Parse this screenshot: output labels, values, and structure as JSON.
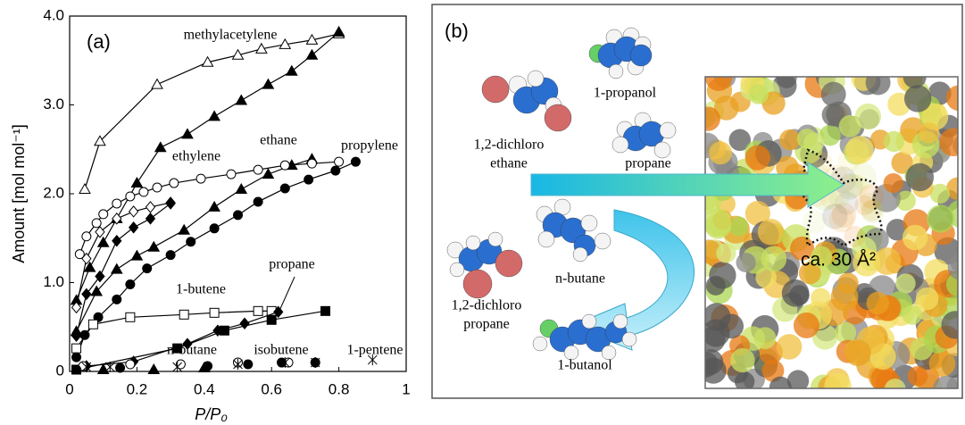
{
  "chart_data": {
    "type": "line",
    "panel_label": "(a)",
    "xlabel": "P/P₀",
    "ylabel": "Amount [mol mol⁻¹]",
    "xlim": [
      0,
      1
    ],
    "ylim": [
      0,
      4
    ],
    "xticks": [
      0,
      0.2,
      0.4,
      0.6,
      0.8,
      1
    ],
    "yticks": [
      0,
      {
        "value": 1,
        "label": "1.0"
      },
      {
        "value": 2,
        "label": "2.0"
      },
      {
        "value": 3,
        "label": "3.0"
      },
      {
        "value": 4,
        "label": "4.0"
      }
    ],
    "annotations": [
      "methylacetylene",
      "ethylene",
      "ethane",
      "propylene",
      "1-butene",
      "propane",
      "n-butane",
      "isobutene",
      "1-pentene"
    ],
    "series": [
      {
        "marker": "triangle",
        "filled": false,
        "line": true,
        "color": "#000000",
        "x": [
          0.045,
          0.09,
          0.26,
          0.41,
          0.5,
          0.57,
          0.64,
          0.72,
          0.8
        ],
        "values": [
          2.05,
          2.59,
          3.23,
          3.48,
          3.56,
          3.63,
          3.68,
          3.73,
          3.8
        ]
      },
      {
        "marker": "triangle",
        "filled": true,
        "line": true,
        "color": "#000000",
        "x": [
          0.02,
          0.06,
          0.1,
          0.14,
          0.2,
          0.27,
          0.35,
          0.43,
          0.51,
          0.59,
          0.66,
          0.72,
          0.8
        ],
        "values": [
          0.8,
          1.17,
          1.45,
          1.72,
          2.12,
          2.52,
          2.67,
          2.87,
          3.05,
          3.23,
          3.38,
          3.56,
          3.82
        ]
      },
      {
        "marker": "triangle",
        "filled": true,
        "line": true,
        "color": "#000000",
        "x": [
          0.02,
          0.08,
          0.14,
          0.2,
          0.25,
          0.34,
          0.43,
          0.51,
          0.59,
          0.66,
          0.72
        ],
        "values": [
          0.45,
          0.9,
          1.15,
          1.3,
          1.4,
          1.59,
          1.85,
          2.05,
          2.22,
          2.32,
          2.39
        ]
      },
      {
        "marker": "circle",
        "filled": false,
        "line": true,
        "color": "#000000",
        "x": [
          0.03,
          0.05,
          0.08,
          0.1,
          0.14,
          0.18,
          0.22,
          0.26,
          0.31,
          0.39,
          0.48,
          0.56,
          0.64,
          0.72,
          0.8
        ],
        "values": [
          1.32,
          1.52,
          1.67,
          1.77,
          1.89,
          1.97,
          2.02,
          2.07,
          2.12,
          2.17,
          2.22,
          2.27,
          2.32,
          2.34,
          2.36
        ]
      },
      {
        "marker": "diamond",
        "filled": false,
        "line": true,
        "color": "#000000",
        "x": [
          0.02,
          0.05,
          0.09,
          0.14,
          0.19,
          0.24,
          0.3
        ],
        "values": [
          0.72,
          1.27,
          1.57,
          1.72,
          1.8,
          1.85,
          1.9
        ]
      },
      {
        "marker": "diamond",
        "filled": true,
        "line": true,
        "color": "#000000",
        "x": [
          0.02,
          0.05,
          0.09,
          0.14,
          0.19,
          0.24,
          0.3
        ],
        "values": [
          0.4,
          0.87,
          1.07,
          1.47,
          1.62,
          1.72,
          1.89
        ]
      },
      {
        "marker": "circle",
        "filled": true,
        "line": true,
        "color": "#000000",
        "x": [
          0.02,
          0.045,
          0.085,
          0.14,
          0.18,
          0.23,
          0.3,
          0.36,
          0.43,
          0.5,
          0.56,
          0.64,
          0.71,
          0.79,
          0.85
        ],
        "values": [
          0.16,
          0.41,
          0.61,
          0.81,
          0.98,
          1.16,
          1.31,
          1.46,
          1.61,
          1.76,
          1.91,
          2.06,
          2.16,
          2.26,
          2.36
        ]
      },
      {
        "marker": "square",
        "filled": false,
        "line": true,
        "color": "#000000",
        "x": [
          0.02,
          0.07,
          0.18,
          0.34,
          0.43,
          0.56,
          0.6
        ],
        "values": [
          0.26,
          0.53,
          0.61,
          0.64,
          0.66,
          0.68,
          0.68
        ]
      },
      {
        "marker": "square",
        "filled": true,
        "line": true,
        "color": "#000000",
        "x": [
          0.02,
          0.32,
          0.46,
          0.6,
          0.76
        ],
        "values": [
          0.02,
          0.26,
          0.46,
          0.58,
          0.68
        ]
      },
      {
        "marker": "diamond",
        "filled": true,
        "line": true,
        "color": "#000000",
        "x": [
          0.05,
          0.19,
          0.35,
          0.44,
          0.52,
          0.62
        ],
        "values": [
          0.06,
          0.11,
          0.31,
          0.46,
          0.54,
          0.67
        ]
      },
      {
        "marker": "circle",
        "filled": false,
        "line": false,
        "color": "#000000",
        "x": [
          0.04,
          0.18,
          0.33,
          0.5,
          0.65
        ],
        "values": [
          0.06,
          0.08,
          0.08,
          0.1,
          0.1
        ]
      },
      {
        "marker": "circle",
        "filled": true,
        "line": false,
        "color": "#000000",
        "x": [
          0.02,
          0.15,
          0.41,
          0.53,
          0.63,
          0.73
        ],
        "values": [
          0.02,
          0.04,
          0.06,
          0.08,
          0.1,
          0.1
        ]
      },
      {
        "marker": "star",
        "filled": false,
        "line": false,
        "color": "#000000",
        "x": [
          0.05,
          0.12,
          0.32,
          0.5,
          0.64,
          0.73,
          0.9
        ],
        "values": [
          0.05,
          0.05,
          0.05,
          0.08,
          0.1,
          0.1,
          0.13
        ]
      },
      {
        "marker": "triangle",
        "filled": true,
        "line": false,
        "color": "#000000",
        "x": [
          0.1,
          0.25,
          0.4
        ],
        "values": [
          0.02,
          0.02,
          0.04
        ]
      }
    ]
  },
  "diagram": {
    "panel_label": "(b)",
    "molecules": [
      "1-propanol",
      "1,2-dichloro",
      "ethane",
      "propane",
      "n-butane",
      "1,2-dichloro",
      "propane",
      "1-butanol"
    ],
    "pore_label": "ca. 30 Å²"
  }
}
